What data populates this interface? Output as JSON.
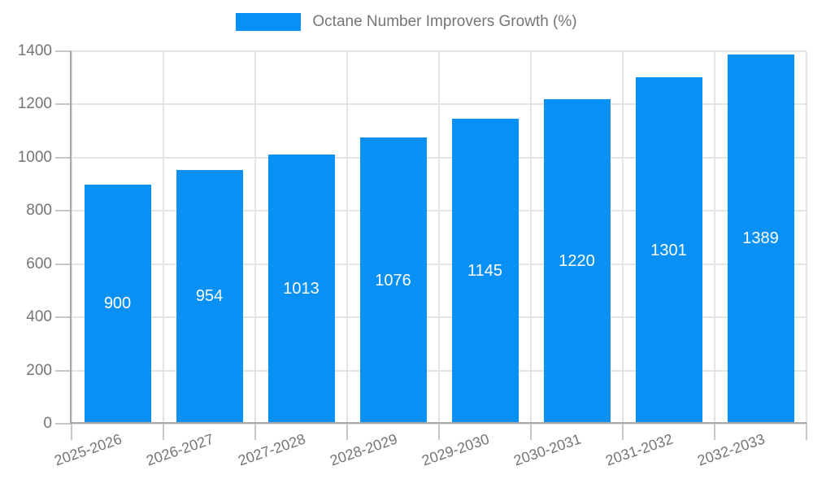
{
  "legend": {
    "label": "Octane Number Improvers Growth (%)"
  },
  "colors": {
    "bar": "#0890f5",
    "legend_text": "#757575",
    "axis_label": "#757575",
    "value_label": "#ffffff",
    "grid": "#e4e4e4",
    "axis_line": "#a8a8a8",
    "tick_mark": "#c6c6c6",
    "background": "#ffffff"
  },
  "chart_data": {
    "type": "bar",
    "title": "Octane Number Improvers Growth (%)",
    "categories": [
      "2025-2026",
      "2026-2027",
      "2027-2028",
      "2028-2029",
      "2029-2030",
      "2030-2031",
      "2031-2032",
      "2032-2033"
    ],
    "values": [
      900,
      954,
      1013,
      1076,
      1145,
      1220,
      1301,
      1389
    ],
    "xlabel": "",
    "ylabel": "",
    "ylim": [
      0,
      1400
    ],
    "yticks": [
      0,
      200,
      400,
      600,
      800,
      1000,
      1200,
      1400
    ],
    "grid": true,
    "legend_position": "top-center",
    "value_labels": "inside-center-white",
    "x_tick_rotation_deg": -19
  }
}
